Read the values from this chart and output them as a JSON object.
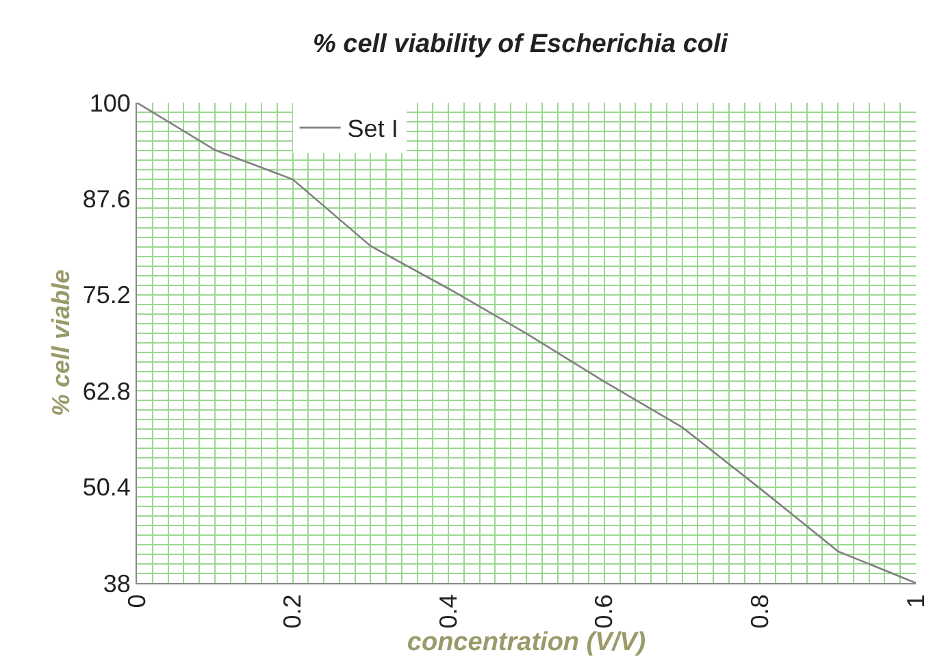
{
  "chart_data": {
    "type": "line",
    "title": "% cell viability of Escherichia coli",
    "xlabel": "concentration (V/V)",
    "ylabel": "% cell viable",
    "x": [
      0,
      0.1,
      0.2,
      0.3,
      0.4,
      0.5,
      0.6,
      0.7,
      0.8,
      0.9,
      1
    ],
    "series": [
      {
        "name": "Set I",
        "color": "#808080",
        "values": [
          100,
          93.9,
          90.1,
          81.5,
          76.0,
          70.2,
          64.0,
          58.1,
          50.2,
          42.1,
          38
        ]
      }
    ],
    "xlim": [
      0,
      1
    ],
    "xticks": [
      0,
      {
        "value": 0.02,
        "label": null
      },
      {
        "value": 0.04,
        "label": null
      },
      {
        "value": 0.06,
        "label": null
      },
      {
        "value": 0.08,
        "label": null
      },
      {
        "value": 0.1,
        "label": null
      },
      {
        "value": 0.12,
        "label": null
      },
      {
        "value": 0.14,
        "label": null
      },
      {
        "value": 0.16,
        "label": null
      },
      {
        "value": 0.18,
        "label": null
      },
      0.2,
      {
        "value": 0.22,
        "label": null
      },
      {
        "value": 0.24,
        "label": null
      },
      {
        "value": 0.26,
        "label": null
      },
      {
        "value": 0.28,
        "label": null
      },
      {
        "value": 0.3,
        "label": null
      },
      {
        "value": 0.32,
        "label": null
      },
      {
        "value": 0.34,
        "label": null
      },
      {
        "value": 0.36,
        "label": null
      },
      {
        "value": 0.38,
        "label": null
      },
      0.4,
      {
        "value": 0.42,
        "label": null
      },
      {
        "value": 0.44,
        "label": null
      },
      {
        "value": 0.46,
        "label": null
      },
      {
        "value": 0.48,
        "label": null
      },
      {
        "value": 0.5,
        "label": null
      },
      {
        "value": 0.52,
        "label": null
      },
      {
        "value": 0.54,
        "label": null
      },
      {
        "value": 0.56,
        "label": null
      },
      {
        "value": 0.58,
        "label": null
      },
      0.6,
      {
        "value": 0.62,
        "label": null
      },
      {
        "value": 0.64,
        "label": null
      },
      {
        "value": 0.66,
        "label": null
      },
      {
        "value": 0.68,
        "label": null
      },
      {
        "value": 0.7,
        "label": null
      },
      {
        "value": 0.72,
        "label": null
      },
      {
        "value": 0.74,
        "label": null
      },
      {
        "value": 0.76,
        "label": null
      },
      {
        "value": 0.78,
        "label": null
      },
      0.8,
      {
        "value": 0.82,
        "label": null
      },
      {
        "value": 0.84,
        "label": null
      },
      {
        "value": 0.86,
        "label": null
      },
      {
        "value": 0.88,
        "label": null
      },
      {
        "value": 0.9,
        "label": null
      },
      {
        "value": 0.92,
        "label": null
      },
      {
        "value": 0.94,
        "label": null
      },
      {
        "value": 0.96,
        "label": null
      },
      {
        "value": 0.98,
        "label": null
      },
      1
    ],
    "ylim": [
      38,
      100
    ],
    "yticks": [
      38,
      {
        "value": 39.24,
        "label": null
      },
      {
        "value": 40.48,
        "label": null
      },
      {
        "value": 41.72,
        "label": null
      },
      {
        "value": 42.96,
        "label": null
      },
      {
        "value": 44.2,
        "label": null
      },
      {
        "value": 45.44,
        "label": null
      },
      {
        "value": 46.68,
        "label": null
      },
      {
        "value": 47.92,
        "label": null
      },
      {
        "value": 49.16,
        "label": null
      },
      50.4,
      {
        "value": 51.64,
        "label": null
      },
      {
        "value": 52.88,
        "label": null
      },
      {
        "value": 54.12,
        "label": null
      },
      {
        "value": 55.36,
        "label": null
      },
      {
        "value": 56.6,
        "label": null
      },
      {
        "value": 57.84,
        "label": null
      },
      {
        "value": 59.08,
        "label": null
      },
      {
        "value": 60.32,
        "label": null
      },
      {
        "value": 61.56,
        "label": null
      },
      62.8,
      {
        "value": 64.04,
        "label": null
      },
      {
        "value": 65.28,
        "label": null
      },
      {
        "value": 66.52,
        "label": null
      },
      {
        "value": 67.76,
        "label": null
      },
      {
        "value": 69.0,
        "label": null
      },
      {
        "value": 70.24,
        "label": null
      },
      {
        "value": 71.48,
        "label": null
      },
      {
        "value": 72.72,
        "label": null
      },
      {
        "value": 73.96,
        "label": null
      },
      75.2,
      {
        "value": 76.44,
        "label": null
      },
      {
        "value": 77.68,
        "label": null
      },
      {
        "value": 78.92,
        "label": null
      },
      {
        "value": 80.16,
        "label": null
      },
      {
        "value": 81.4,
        "label": null
      },
      {
        "value": 82.64,
        "label": null
      },
      {
        "value": 83.88,
        "label": null
      },
      {
        "value": 85.12,
        "label": null
      },
      {
        "value": 86.36,
        "label": null
      },
      87.6,
      {
        "value": 88.84,
        "label": null
      },
      {
        "value": 90.08,
        "label": null
      },
      {
        "value": 91.32,
        "label": null
      },
      {
        "value": 92.56,
        "label": null
      },
      {
        "value": 93.8,
        "label": null
      },
      {
        "value": 95.04,
        "label": null
      },
      {
        "value": 96.28,
        "label": null
      },
      {
        "value": 97.52,
        "label": null
      },
      {
        "value": 98.76,
        "label": null
      },
      100
    ],
    "grid": true,
    "legend": "top left",
    "marker": "none",
    "line_style": "solid"
  }
}
